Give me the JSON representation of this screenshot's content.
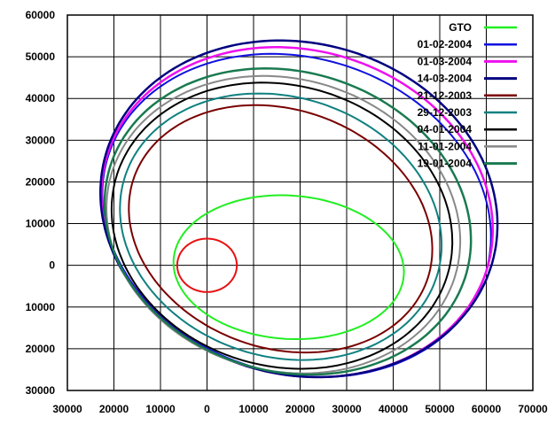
{
  "chart_data": {
    "type": "line",
    "title": "",
    "xlabel": "",
    "ylabel": "",
    "xlim": [
      -30000,
      70000
    ],
    "ylim": [
      -30000,
      60000
    ],
    "grid": true,
    "legend_position": "top-right",
    "x_ticks": [
      -30000,
      -20000,
      -10000,
      0,
      10000,
      20000,
      30000,
      40000,
      50000,
      60000,
      70000
    ],
    "x_tick_labels": [
      "30000",
      "20000",
      "10000",
      "0",
      "10000",
      "20000",
      "30000",
      "40000",
      "50000",
      "60000",
      "70000"
    ],
    "y_ticks": [
      60000,
      50000,
      40000,
      30000,
      20000,
      10000,
      0,
      -10000,
      -20000,
      -30000
    ],
    "y_tick_labels": [
      "60000",
      "50000",
      "40000",
      "30000",
      "20000",
      "10000",
      "0",
      "10000",
      "20000",
      "30000"
    ],
    "earth": {
      "center": [
        0,
        0
      ],
      "radius": 6400,
      "color": "#e81010"
    },
    "series": [
      {
        "name": "GTO",
        "color": "#22ee22",
        "width": 2,
        "xmin": -7200,
        "xmax": 42300,
        "ymin": -17700,
        "ymax": 16800,
        "tilt_deg": -5
      },
      {
        "name": "01-02-2004",
        "color": "#1010e0",
        "width": 2,
        "xmin": -22500,
        "xmax": 61000,
        "ymin": -26800,
        "ymax": 50700,
        "tilt_deg": -30
      },
      {
        "name": "01-03-2004",
        "color": "#ee10ee",
        "width": 2.5,
        "xmin": -22700,
        "xmax": 61400,
        "ymin": -26800,
        "ymax": 52300,
        "tilt_deg": -30
      },
      {
        "name": "14-03-2004",
        "color": "#000080",
        "width": 2.5,
        "xmin": -22900,
        "xmax": 62400,
        "ymin": -26800,
        "ymax": 53900,
        "tilt_deg": -30
      },
      {
        "name": "21-12-2003",
        "color": "#7a0000",
        "width": 2,
        "xmin": -16800,
        "xmax": 48400,
        "ymin": -20900,
        "ymax": 38400,
        "tilt_deg": -30
      },
      {
        "name": "29-12-2003",
        "color": "#108080",
        "width": 2,
        "xmin": -18700,
        "xmax": 50400,
        "ymin": -22700,
        "ymax": 41200,
        "tilt_deg": -30
      },
      {
        "name": "04-01-2004",
        "color": "#000000",
        "width": 2,
        "xmin": -20500,
        "xmax": 52700,
        "ymin": -24800,
        "ymax": 43800,
        "tilt_deg": -30
      },
      {
        "name": "11-01-2004",
        "color": "#888888",
        "width": 2,
        "xmin": -21600,
        "xmax": 54400,
        "ymin": -25900,
        "ymax": 45400,
        "tilt_deg": -30
      },
      {
        "name": "19-01-2004",
        "color": "#1a7a50",
        "width": 2.5,
        "xmin": -22000,
        "xmax": 56700,
        "ymin": -26200,
        "ymax": 47200,
        "tilt_deg": -30
      }
    ]
  }
}
